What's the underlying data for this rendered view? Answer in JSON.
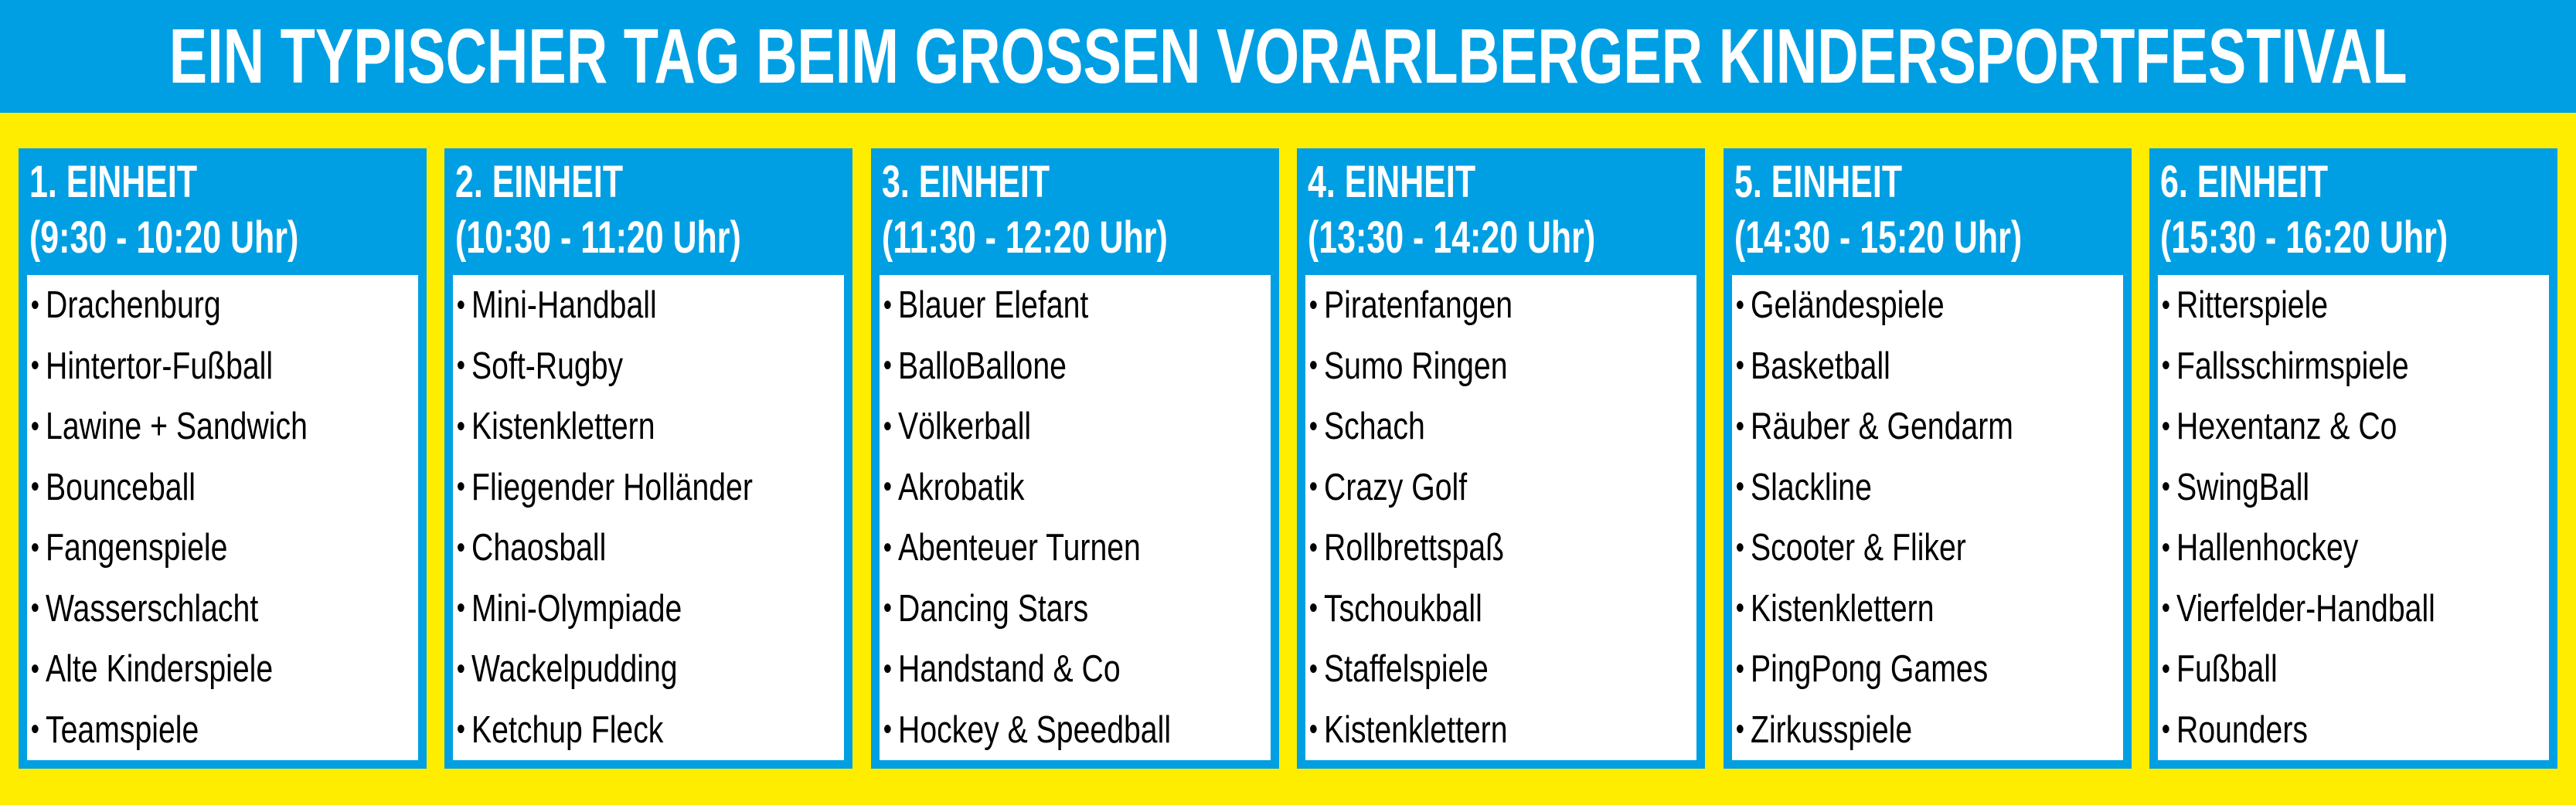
{
  "title": "EIN TYPISCHER TAG BEIM GROSSEN VORARLBERGER KINDERSPORTFESTIVAL",
  "colors": {
    "blue": "#009FE3",
    "yellow": "#FFED00",
    "white": "#FFFFFF"
  },
  "bullet_icon": "•",
  "units": [
    {
      "title": "1. EINHEIT",
      "time": "(9:30 - 10:20 Uhr)",
      "activities": [
        "Drachenburg",
        "Hintertor-Fußball",
        "Lawine + Sandwich",
        "Bounceball",
        "Fangenspiele",
        "Wasserschlacht",
        "Alte Kinderspiele",
        "Teamspiele"
      ]
    },
    {
      "title": "2. EINHEIT",
      "time": "(10:30 - 11:20 Uhr)",
      "activities": [
        "Mini-Handball",
        "Soft-Rugby",
        "Kistenklettern",
        "Fliegender Holländer",
        "Chaosball",
        "Mini-Olympiade",
        "Wackelpudding",
        "Ketchup Fleck"
      ]
    },
    {
      "title": "3. EINHEIT",
      "time": "(11:30 - 12:20 Uhr)",
      "activities": [
        "Blauer Elefant",
        "BalloBallone",
        "Völkerball",
        "Akrobatik",
        "Abenteuer Turnen",
        "Dancing Stars",
        "Handstand & Co",
        "Hockey & Speedball"
      ]
    },
    {
      "title": "4. EINHEIT",
      "time": "(13:30 - 14:20 Uhr)",
      "activities": [
        "Piratenfangen",
        "Sumo Ringen",
        "Schach",
        "Crazy Golf",
        "Rollbrettspaß",
        "Tschoukball",
        "Staffelspiele",
        "Kistenklettern"
      ]
    },
    {
      "title": "5. EINHEIT",
      "time": "(14:30 - 15:20 Uhr)",
      "activities": [
        "Geländespiele",
        "Basketball",
        "Räuber & Gendarm",
        "Slackline",
        "Scooter & Fliker",
        "Kistenklettern",
        "PingPong Games",
        "Zirkusspiele"
      ]
    },
    {
      "title": "6. EINHEIT",
      "time": "(15:30 - 16:20 Uhr)",
      "activities": [
        "Ritterspiele",
        "Fallsschirmspiele",
        "Hexentanz & Co",
        "SwingBall",
        "Hallenhockey",
        "Vierfelder-Handball",
        "Fußball",
        "Rounders"
      ]
    }
  ]
}
